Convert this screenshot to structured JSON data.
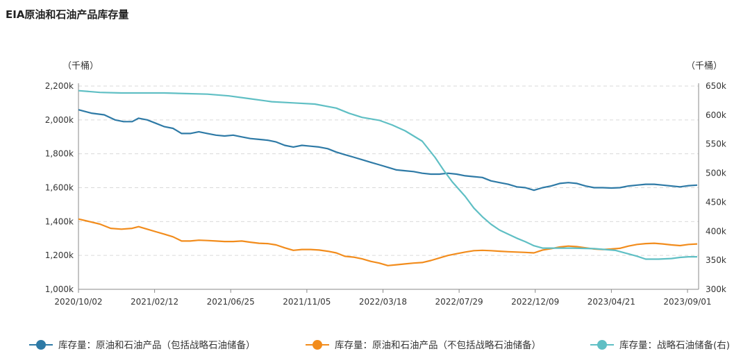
{
  "title": "EIA原油和石油产品库存量",
  "chart_data": {
    "type": "line",
    "title": "EIA原油和石油产品库存量",
    "left_unit": "（千桶）",
    "right_unit": "（千桶）",
    "left_axis": {
      "min": 1000,
      "max": 2200,
      "ticks": [
        1000,
        1200,
        1400,
        1600,
        1800,
        2000,
        2200
      ],
      "tick_labels": [
        "1,000k",
        "1,200k",
        "1,400k",
        "1,600k",
        "1,800k",
        "2,000k",
        "2,200k"
      ]
    },
    "right_axis": {
      "min": 300,
      "max": 650,
      "ticks": [
        300,
        350,
        400,
        450,
        500,
        550,
        600,
        650
      ],
      "tick_labels": [
        "300k",
        "350k",
        "400k",
        "450k",
        "500k",
        "550k",
        "600k",
        "650k"
      ]
    },
    "x_axis": {
      "tick_labels": [
        "2020/10/02",
        "2021/02/12",
        "2021/06/25",
        "2021/11/05",
        "2022/03/18",
        "2022/07/29",
        "2022/12/09",
        "2023/04/21",
        "2023/09/01"
      ]
    },
    "grid": "horizontal dashed",
    "legend_position": "bottom",
    "series": [
      {
        "name": "库存量：原油和石油产品（包括战略石油储备）",
        "axis": "left",
        "color": "#2e7aa6",
        "points": [
          [
            0,
            2060
          ],
          [
            0.3,
            2040
          ],
          [
            0.6,
            2030
          ],
          [
            0.85,
            2000
          ],
          [
            1.05,
            1990
          ],
          [
            1.25,
            1990
          ],
          [
            1.4,
            2010
          ],
          [
            1.6,
            2000
          ],
          [
            1.8,
            1980
          ],
          [
            2.0,
            1960
          ],
          [
            2.2,
            1950
          ],
          [
            2.4,
            1920
          ],
          [
            2.6,
            1920
          ],
          [
            2.8,
            1930
          ],
          [
            3.0,
            1920
          ],
          [
            3.2,
            1910
          ],
          [
            3.4,
            1905
          ],
          [
            3.6,
            1910
          ],
          [
            3.8,
            1900
          ],
          [
            4.0,
            1890
          ],
          [
            4.2,
            1885
          ],
          [
            4.4,
            1880
          ],
          [
            4.6,
            1870
          ],
          [
            4.8,
            1850
          ],
          [
            5.0,
            1840
          ],
          [
            5.2,
            1850
          ],
          [
            5.4,
            1845
          ],
          [
            5.6,
            1840
          ],
          [
            5.8,
            1830
          ],
          [
            6.0,
            1810
          ],
          [
            6.2,
            1795
          ],
          [
            6.4,
            1780
          ],
          [
            6.6,
            1765
          ],
          [
            6.8,
            1750
          ],
          [
            7.0,
            1735
          ],
          [
            7.2,
            1720
          ],
          [
            7.4,
            1705
          ],
          [
            7.6,
            1700
          ],
          [
            7.8,
            1695
          ],
          [
            8.0,
            1685
          ],
          [
            8.2,
            1680
          ],
          [
            8.4,
            1680
          ],
          [
            8.6,
            1685
          ],
          [
            8.8,
            1680
          ],
          [
            9.0,
            1670
          ],
          [
            9.2,
            1665
          ],
          [
            9.4,
            1660
          ],
          [
            9.6,
            1640
          ],
          [
            9.8,
            1630
          ],
          [
            10.0,
            1620
          ],
          [
            10.2,
            1605
          ],
          [
            10.4,
            1600
          ],
          [
            10.6,
            1585
          ],
          [
            10.8,
            1600
          ],
          [
            11.0,
            1610
          ],
          [
            11.2,
            1625
          ],
          [
            11.4,
            1630
          ],
          [
            11.6,
            1625
          ],
          [
            11.8,
            1610
          ],
          [
            12.0,
            1600
          ],
          [
            12.2,
            1600
          ],
          [
            12.4,
            1598
          ],
          [
            12.6,
            1600
          ],
          [
            12.8,
            1610
          ],
          [
            13.0,
            1615
          ],
          [
            13.2,
            1620
          ],
          [
            13.4,
            1620
          ],
          [
            13.6,
            1615
          ],
          [
            13.8,
            1610
          ],
          [
            14.0,
            1605
          ],
          [
            14.2,
            1612
          ],
          [
            14.4,
            1615
          ]
        ]
      },
      {
        "name": "库存量：原油和石油产品（不包括战略石油储备）",
        "axis": "left",
        "color": "#f28c1c",
        "points": [
          [
            0,
            1415
          ],
          [
            0.25,
            1400
          ],
          [
            0.5,
            1385
          ],
          [
            0.75,
            1360
          ],
          [
            1.0,
            1355
          ],
          [
            1.25,
            1360
          ],
          [
            1.4,
            1370
          ],
          [
            1.6,
            1355
          ],
          [
            1.8,
            1340
          ],
          [
            2.0,
            1325
          ],
          [
            2.2,
            1310
          ],
          [
            2.4,
            1285
          ],
          [
            2.6,
            1285
          ],
          [
            2.8,
            1290
          ],
          [
            3.0,
            1288
          ],
          [
            3.2,
            1285
          ],
          [
            3.4,
            1282
          ],
          [
            3.6,
            1282
          ],
          [
            3.8,
            1285
          ],
          [
            4.0,
            1278
          ],
          [
            4.2,
            1272
          ],
          [
            4.4,
            1270
          ],
          [
            4.6,
            1262
          ],
          [
            4.8,
            1245
          ],
          [
            5.0,
            1230
          ],
          [
            5.2,
            1235
          ],
          [
            5.4,
            1235
          ],
          [
            5.6,
            1232
          ],
          [
            5.8,
            1225
          ],
          [
            6.0,
            1215
          ],
          [
            6.2,
            1195
          ],
          [
            6.4,
            1190
          ],
          [
            6.6,
            1180
          ],
          [
            6.8,
            1165
          ],
          [
            7.0,
            1155
          ],
          [
            7.2,
            1140
          ],
          [
            7.4,
            1145
          ],
          [
            7.6,
            1150
          ],
          [
            7.8,
            1155
          ],
          [
            8.0,
            1158
          ],
          [
            8.2,
            1170
          ],
          [
            8.4,
            1185
          ],
          [
            8.6,
            1200
          ],
          [
            8.8,
            1210
          ],
          [
            9.0,
            1220
          ],
          [
            9.2,
            1228
          ],
          [
            9.4,
            1230
          ],
          [
            9.6,
            1228
          ],
          [
            9.8,
            1225
          ],
          [
            10.0,
            1222
          ],
          [
            10.2,
            1220
          ],
          [
            10.4,
            1218
          ],
          [
            10.6,
            1215
          ],
          [
            10.8,
            1232
          ],
          [
            11.0,
            1240
          ],
          [
            11.2,
            1250
          ],
          [
            11.4,
            1255
          ],
          [
            11.6,
            1252
          ],
          [
            11.8,
            1245
          ],
          [
            12.0,
            1238
          ],
          [
            12.2,
            1235
          ],
          [
            12.4,
            1238
          ],
          [
            12.6,
            1242
          ],
          [
            12.8,
            1255
          ],
          [
            13.0,
            1265
          ],
          [
            13.2,
            1270
          ],
          [
            13.4,
            1272
          ],
          [
            13.6,
            1268
          ],
          [
            13.8,
            1262
          ],
          [
            14.0,
            1258
          ],
          [
            14.2,
            1265
          ],
          [
            14.4,
            1268
          ]
        ]
      },
      {
        "name": "库存量：战略石油储备(右)",
        "axis": "right",
        "color": "#5fbfc4",
        "points": [
          [
            0,
            642
          ],
          [
            0.5,
            639
          ],
          [
            1.0,
            638
          ],
          [
            2.0,
            638
          ],
          [
            2.5,
            637
          ],
          [
            3.0,
            636
          ],
          [
            3.5,
            633
          ],
          [
            4.0,
            628
          ],
          [
            4.5,
            623
          ],
          [
            5.0,
            621
          ],
          [
            5.5,
            619
          ],
          [
            6.0,
            612
          ],
          [
            6.3,
            603
          ],
          [
            6.6,
            596
          ],
          [
            7.0,
            591
          ],
          [
            7.3,
            583
          ],
          [
            7.6,
            573
          ],
          [
            8.0,
            555
          ],
          [
            8.3,
            527
          ],
          [
            8.5,
            505
          ],
          [
            8.7,
            485
          ],
          [
            9.0,
            460
          ],
          [
            9.2,
            440
          ],
          [
            9.4,
            425
          ],
          [
            9.6,
            412
          ],
          [
            9.8,
            402
          ],
          [
            10.0,
            395
          ],
          [
            10.2,
            388
          ],
          [
            10.4,
            382
          ],
          [
            10.6,
            375
          ],
          [
            10.8,
            371
          ],
          [
            11.0,
            371
          ],
          [
            11.5,
            371
          ],
          [
            12.0,
            370
          ],
          [
            12.5,
            367
          ],
          [
            12.8,
            361
          ],
          [
            13.0,
            357
          ],
          [
            13.2,
            352
          ],
          [
            13.5,
            352
          ],
          [
            13.8,
            353
          ],
          [
            14.0,
            355
          ],
          [
            14.2,
            356
          ],
          [
            14.4,
            356
          ]
        ]
      }
    ]
  }
}
